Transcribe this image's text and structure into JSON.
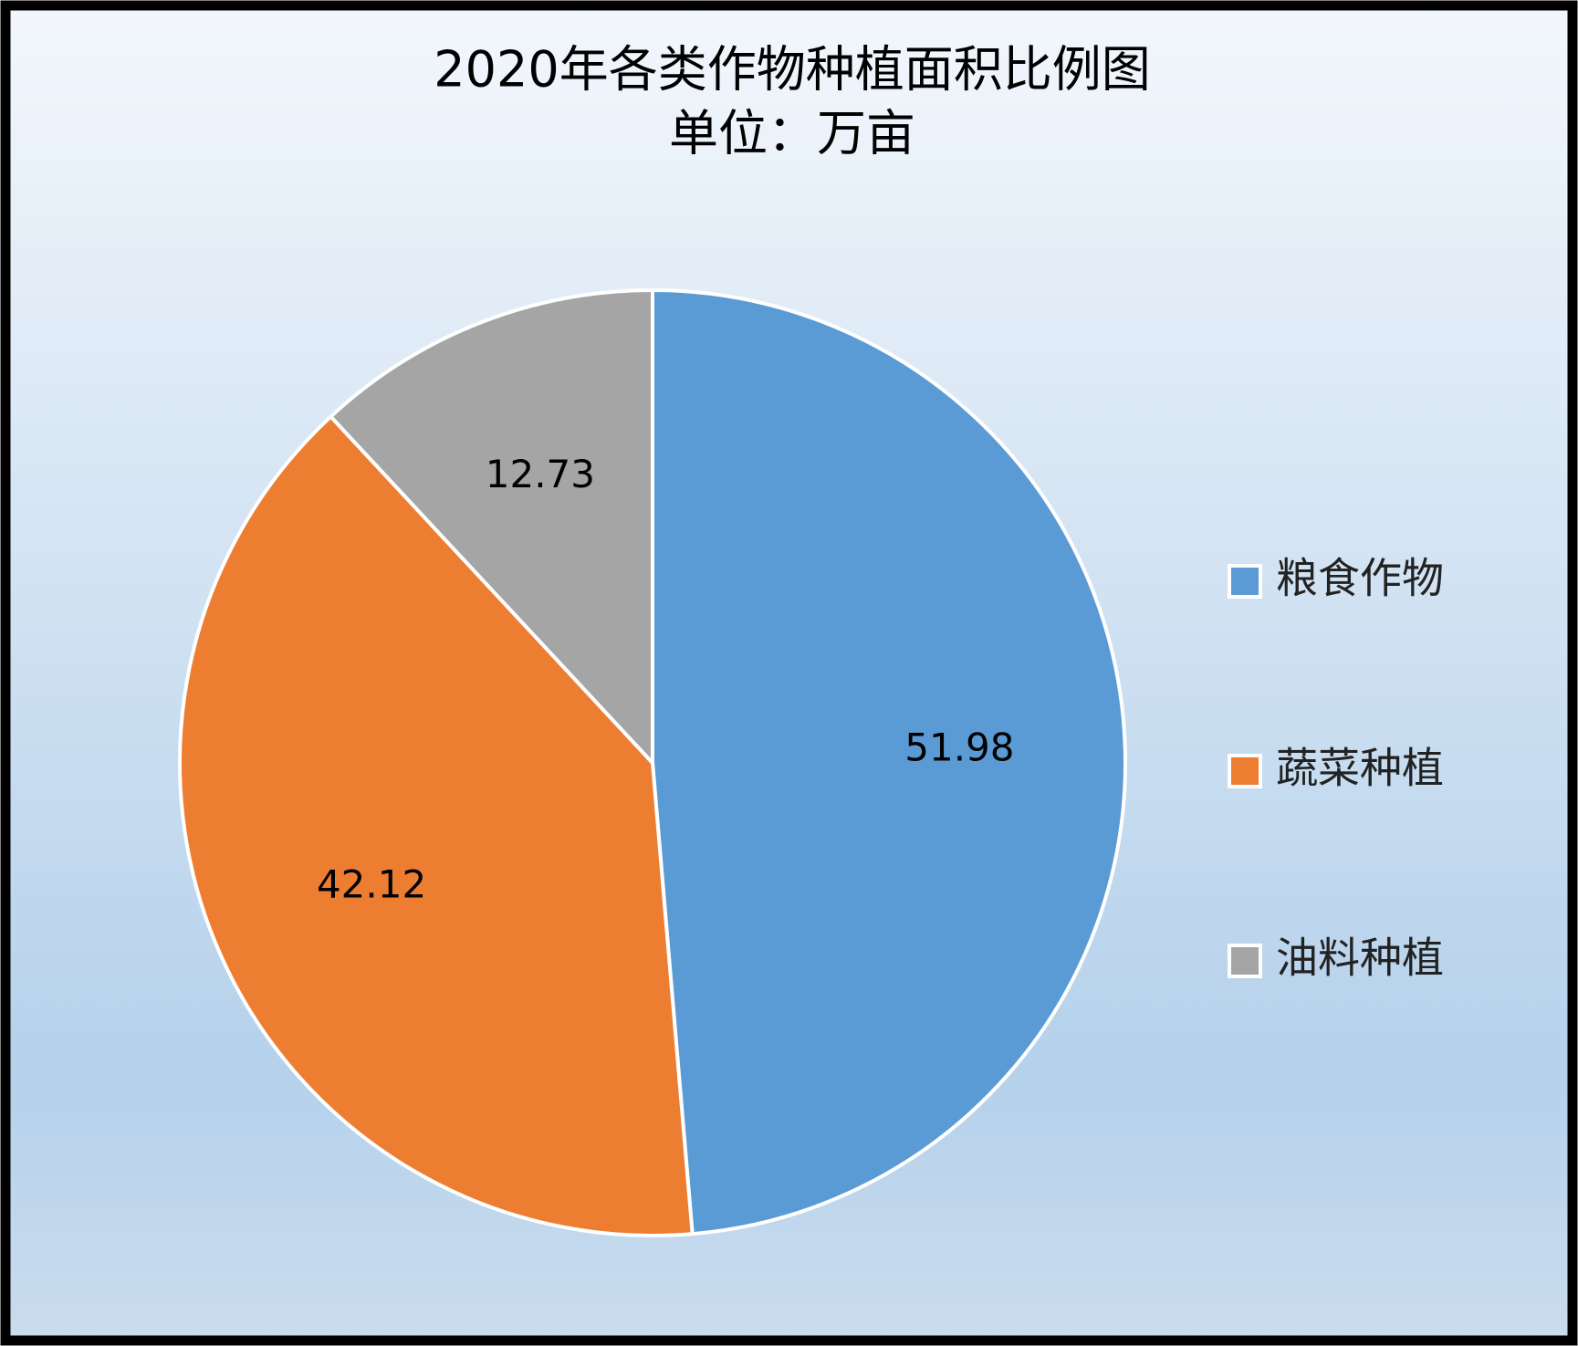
{
  "chart_data": {
    "type": "pie",
    "title": "2020年各类作物种植面积比例图",
    "subtitle": "单位：万亩",
    "categories": [
      "粮食作物",
      "蔬菜种植",
      "油料种植"
    ],
    "values": [
      51.98,
      42.12,
      12.73
    ],
    "colors": [
      "#5b9bd5",
      "#ed7d31",
      "#a5a5a5"
    ],
    "legend": "right"
  }
}
